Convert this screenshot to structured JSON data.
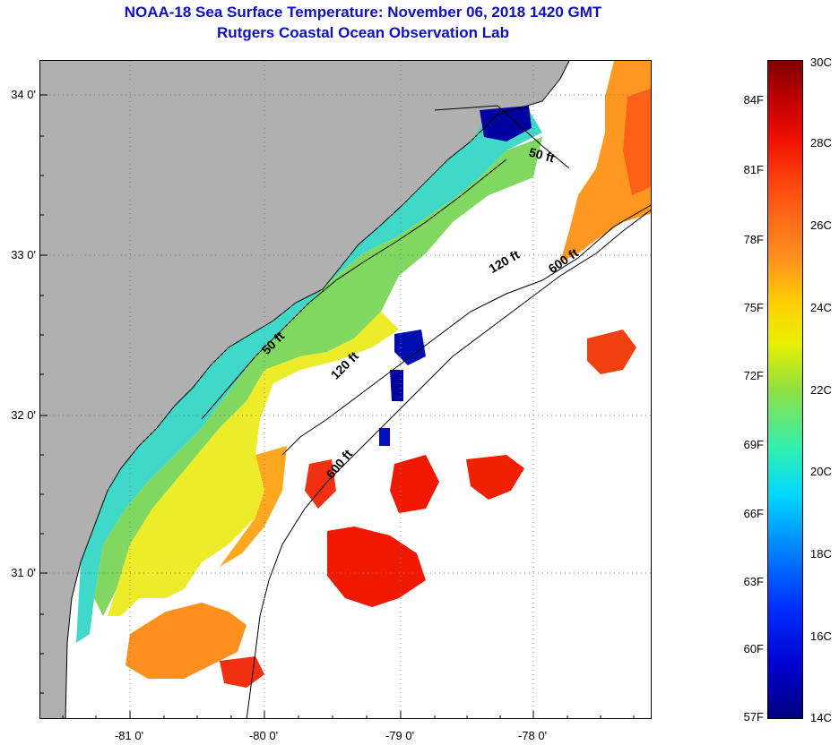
{
  "header": {
    "title": "NOAA-18 Sea Surface Temperature:  November 06, 2018 1420 GMT",
    "subtitle": "Rutgers Coastal Ocean Observation Lab"
  },
  "map": {
    "lat_labels": [
      "34 0'",
      "33 0'",
      "32 0'",
      "31 0'"
    ],
    "lon_labels": [
      "-81 0'",
      "-80 0'",
      "-79 0'",
      "-78 0'"
    ],
    "contours": [
      "50 ft",
      "120 ft",
      "600 ft",
      "50 ft",
      "120 ft",
      "600 ft"
    ],
    "colors": {
      "land": "#b0b0b0",
      "cloud": "#ffffff",
      "cold": "#0000a0",
      "cool": "#00c8f0",
      "mild": "#80d860",
      "warm": "#f0e020",
      "warmer": "#ff9820",
      "hot": "#f01800"
    }
  },
  "colorbar": {
    "fahrenheit": [
      "84F",
      "81F",
      "78F",
      "75F",
      "72F",
      "69F",
      "66F",
      "63F",
      "60F",
      "57F"
    ],
    "celsius": [
      "30C",
      "28C",
      "26C",
      "24C",
      "22C",
      "20C",
      "18C",
      "16C",
      "14C"
    ]
  }
}
